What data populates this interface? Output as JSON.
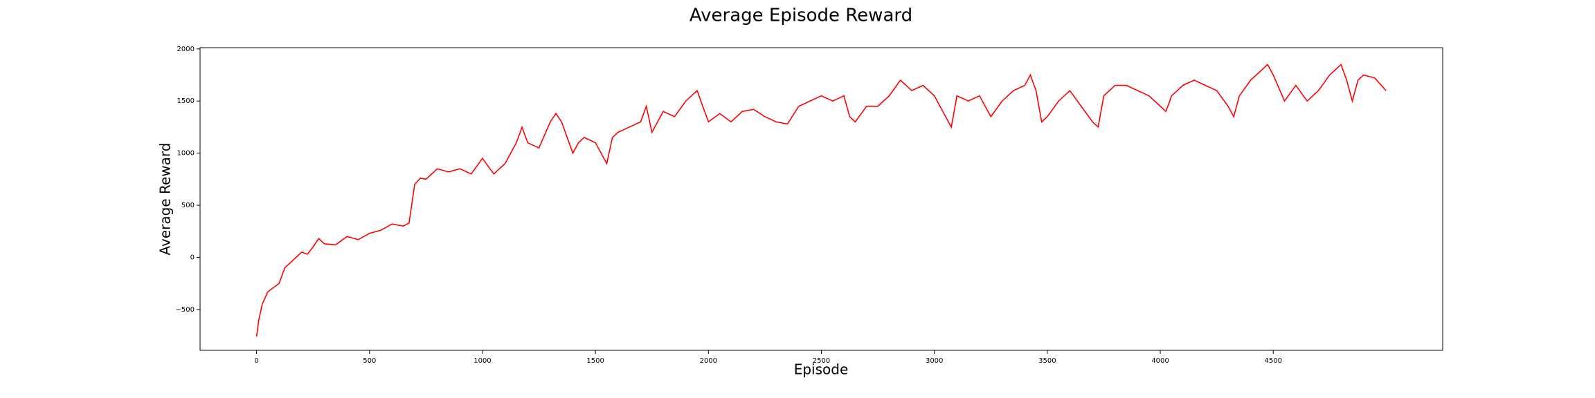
{
  "chart_data": {
    "type": "line",
    "title": "Average Episode Reward",
    "x_label": "Episode",
    "y_label": "Average Reward",
    "x": [
      0,
      10,
      25,
      50,
      100,
      125,
      150,
      200,
      225,
      250,
      275,
      300,
      350,
      400,
      450,
      500,
      550,
      600,
      650,
      675,
      700,
      725,
      750,
      800,
      850,
      900,
      950,
      1000,
      1050,
      1100,
      1150,
      1175,
      1200,
      1250,
      1300,
      1325,
      1350,
      1400,
      1425,
      1450,
      1500,
      1525,
      1550,
      1575,
      1600,
      1650,
      1700,
      1725,
      1750,
      1800,
      1850,
      1900,
      1950,
      2000,
      2050,
      2100,
      2150,
      2200,
      2250,
      2300,
      2350,
      2400,
      2450,
      2500,
      2550,
      2600,
      2625,
      2650,
      2700,
      2750,
      2800,
      2850,
      2900,
      2950,
      3000,
      3050,
      3075,
      3100,
      3150,
      3200,
      3250,
      3300,
      3350,
      3400,
      3425,
      3450,
      3475,
      3500,
      3550,
      3600,
      3650,
      3700,
      3725,
      3750,
      3800,
      3850,
      3900,
      3950,
      4000,
      4025,
      4050,
      4100,
      4150,
      4200,
      4250,
      4300,
      4325,
      4350,
      4400,
      4450,
      4475,
      4500,
      4550,
      4600,
      4650,
      4700,
      4750,
      4800,
      4825,
      4850,
      4875,
      4900,
      4950,
      4999
    ],
    "series": [
      {
        "name": "Average Reward",
        "color": "#ff0000",
        "values": [
          -760,
          -600,
          -450,
          -330,
          -250,
          -100,
          -50,
          50,
          30,
          100,
          180,
          130,
          120,
          200,
          170,
          230,
          260,
          320,
          300,
          330,
          700,
          760,
          750,
          850,
          820,
          850,
          800,
          950,
          800,
          900,
          1100,
          1250,
          1100,
          1050,
          1300,
          1380,
          1300,
          1000,
          1100,
          1150,
          1100,
          1000,
          900,
          1150,
          1200,
          1250,
          1300,
          1450,
          1200,
          1400,
          1350,
          1500,
          1600,
          1300,
          1380,
          1300,
          1400,
          1420,
          1350,
          1300,
          1280,
          1450,
          1500,
          1550,
          1500,
          1550,
          1350,
          1300,
          1450,
          1450,
          1550,
          1700,
          1600,
          1650,
          1550,
          1350,
          1250,
          1550,
          1500,
          1550,
          1350,
          1500,
          1600,
          1650,
          1750,
          1600,
          1300,
          1350,
          1500,
          1600,
          1450,
          1300,
          1250,
          1550,
          1650,
          1650,
          1600,
          1550,
          1450,
          1400,
          1550,
          1650,
          1700,
          1650,
          1600,
          1450,
          1350,
          1550,
          1700,
          1800,
          1850,
          1750,
          1500,
          1650,
          1500,
          1600,
          1750,
          1850,
          1700,
          1500,
          1700,
          1750,
          1720,
          1600
        ]
      }
    ],
    "xlim": [
      -250,
      5250
    ],
    "xticks": [
      0,
      500,
      1000,
      1500,
      2000,
      2500,
      3000,
      3500,
      4000,
      4500
    ],
    "ylim": [
      -892,
      2012
    ],
    "yticks": [
      {
        "value": -500,
        "label": "−500"
      },
      0,
      500,
      1000,
      1500,
      2000
    ]
  }
}
